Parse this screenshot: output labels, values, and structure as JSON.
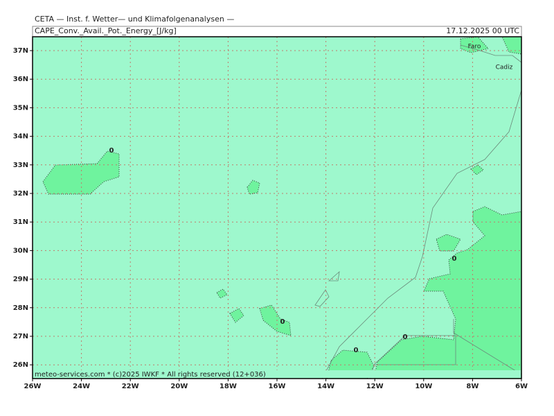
{
  "header": {
    "title": "CETA — Inst. f. Wetter— und Klimafolgenanalysen —",
    "field": "CAPE_Conv._Avail._Pot._Energy_[J/kg]",
    "valid_time": "17.12.2025 00 UTC"
  },
  "x_tick_labels": [
    "26W",
    "24W",
    "22W",
    "20W",
    "18W",
    "16W",
    "14W",
    "12W",
    "10W",
    "8W",
    "6W"
  ],
  "y_tick_labels": [
    "37N",
    "36N",
    "35N",
    "34N",
    "33N",
    "32N",
    "31N",
    "30N",
    "29N",
    "28N",
    "27N",
    "26N"
  ],
  "contour_labels": [
    "0",
    "0",
    "0",
    "0",
    "0"
  ],
  "places": [
    "Faro",
    "Cadiz"
  ],
  "footer": "meteo-services.com * (c)2025 IWKF * All rights reserved (12+036)"
}
